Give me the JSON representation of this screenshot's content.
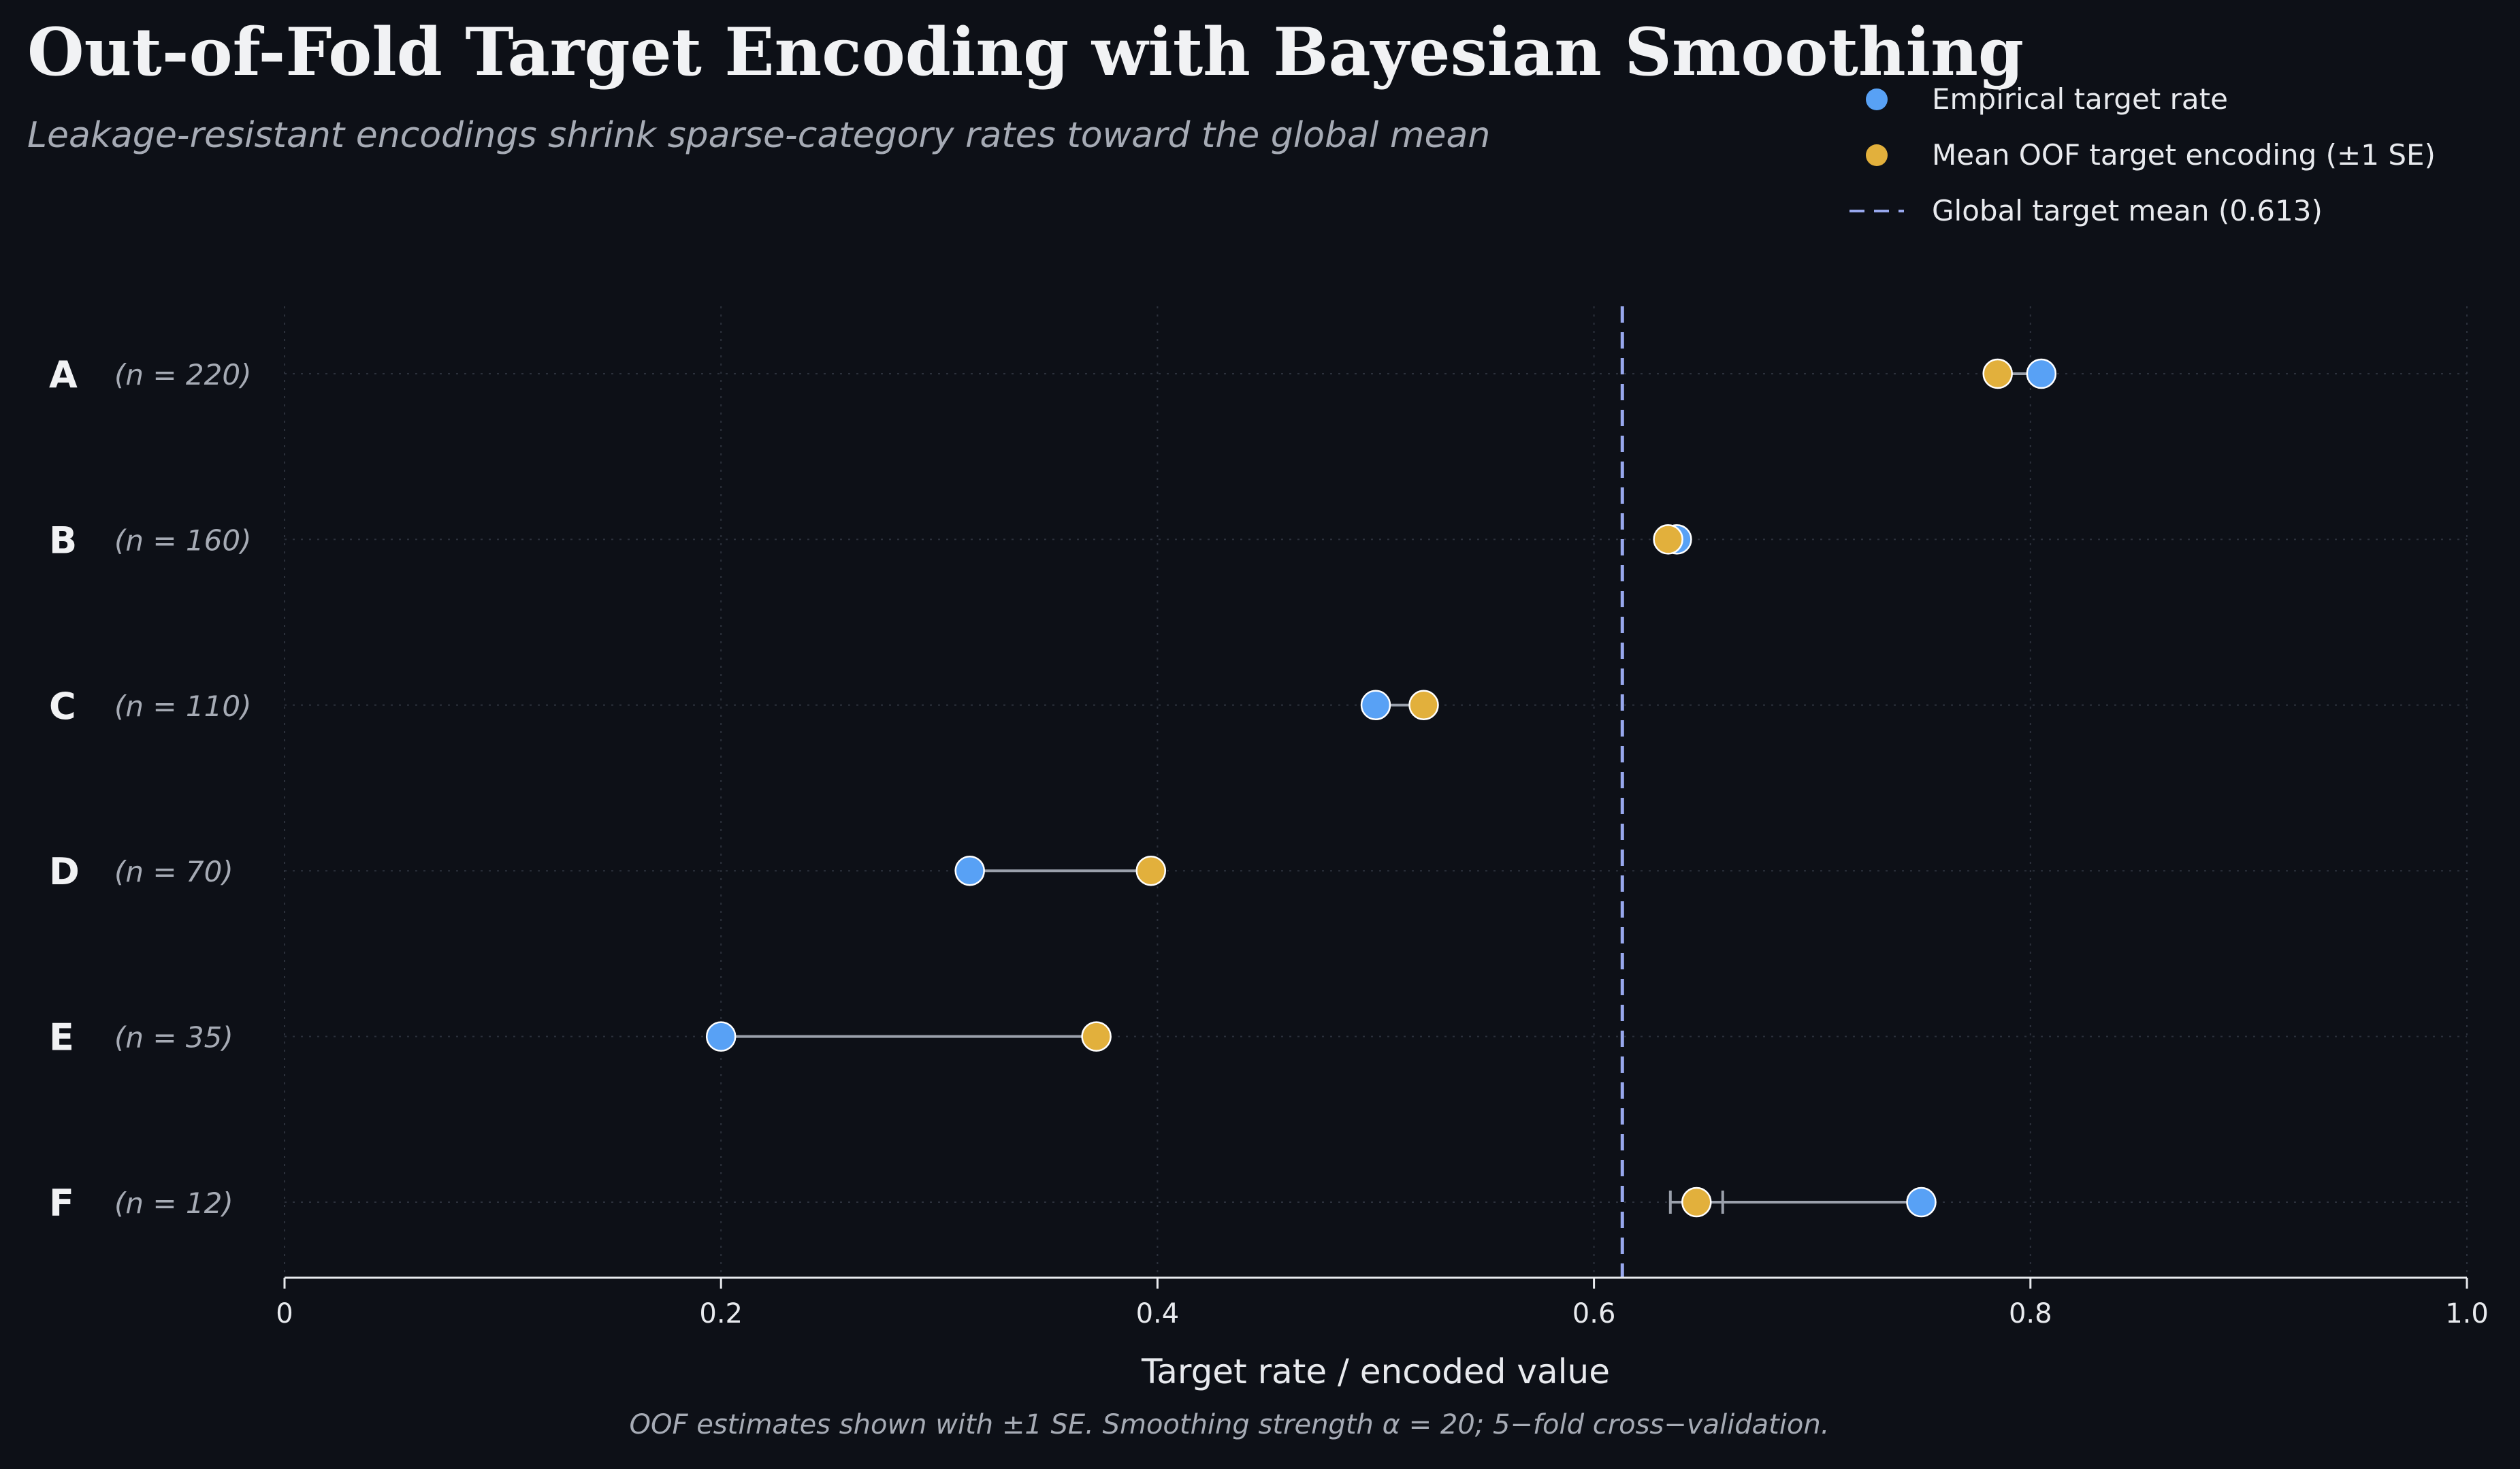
{
  "title": "Out-of-Fold Target Encoding with Bayesian Smoothing",
  "subtitle": "Leakage-resistant encodings shrink sparse-category rates toward the global mean",
  "footnote": "OOF estimates shown with ±1 SE. Smoothing strength α = 20; 5−fold cross−validation.",
  "colors": {
    "background": "#0d1017",
    "empirical": "#58a1f5",
    "oof": "#e2b03c",
    "global_mean_line": "#98a8ee",
    "connector": "#9aa0ab",
    "grid": "#2c313c",
    "text": "#e8eaee",
    "muted": "#a6abb5"
  },
  "chart_data": {
    "type": "scatter",
    "xlabel": "Target rate / encoded value",
    "ylabel": "",
    "xlim": [
      0,
      1.0
    ],
    "xticks": [
      0,
      0.2,
      0.4,
      0.6,
      0.8,
      1.0
    ],
    "xtick_labels": [
      "0",
      "0.2",
      "0.4",
      "0.6",
      "0.8",
      "1.0"
    ],
    "grid": true,
    "legend_position": "top-right",
    "categories": [
      "A",
      "B",
      "C",
      "D",
      "E",
      "F"
    ],
    "category_counts": [
      "(n = 220)",
      "(n = 160)",
      "(n = 110)",
      "(n = 70)",
      "(n = 35)",
      "(n = 12)"
    ],
    "global_mean": 0.613,
    "series": [
      {
        "name": "Empirical target rate",
        "values": [
          0.805,
          0.638,
          0.5,
          0.314,
          0.2,
          0.75
        ]
      },
      {
        "name": "Mean OOF target encoding (±1 SE)",
        "values": [
          0.785,
          0.634,
          0.522,
          0.397,
          0.372,
          0.647
        ],
        "se": [
          0.002,
          0.002,
          0.003,
          0.004,
          0.004,
          0.012
        ]
      }
    ],
    "legend": [
      "Empirical target rate",
      "Mean OOF target encoding (±1 SE)",
      "Global target mean (0.613)"
    ]
  }
}
